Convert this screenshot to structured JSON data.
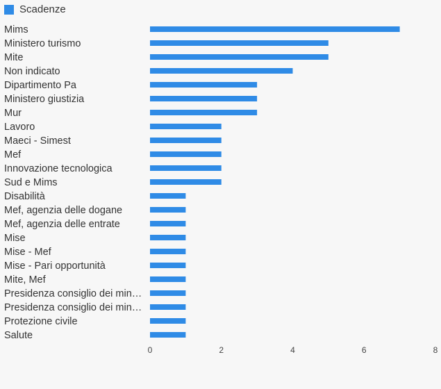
{
  "chart_data": {
    "type": "bar",
    "orientation": "horizontal",
    "title": "",
    "xlabel": "",
    "ylabel": "",
    "legend": {
      "position": "top-left",
      "entries": [
        "Scadenze"
      ]
    },
    "grid": false,
    "xlim": [
      0,
      8
    ],
    "x_ticks": [
      0,
      2,
      4,
      6,
      8
    ],
    "categories": [
      "Mims",
      "Ministero turismo",
      "Mite",
      "Non indicato",
      "Dipartimento Pa",
      "Ministero giustizia",
      "Mur",
      "Lavoro",
      "Maeci - Simest",
      "Mef",
      "Innovazione tecnologica",
      "Sud e Mims",
      "Disabilità",
      "Mef, agenzia delle dogane",
      "Mef, agenzia delle entrate",
      "Mise",
      "Mise - Mef",
      "Mise - Pari opportunità",
      "Mite, Mef",
      "Presidenza consiglio dei min…",
      "Presidenza consiglio dei min…",
      "Protezione civile",
      "Salute"
    ],
    "series": [
      {
        "name": "Scadenze",
        "color": "#2f8be6",
        "values": [
          7,
          5,
          5,
          4,
          3,
          3,
          3,
          2,
          2,
          2,
          2,
          2,
          1,
          1,
          1,
          1,
          1,
          1,
          1,
          1,
          1,
          1,
          1
        ]
      }
    ]
  }
}
